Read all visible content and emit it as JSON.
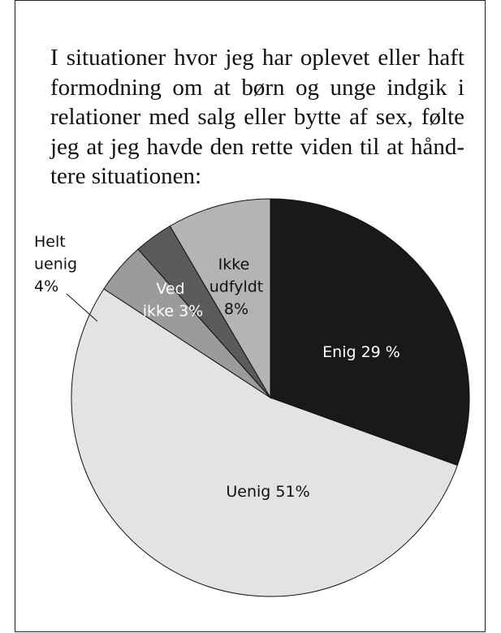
{
  "chart_data": {
    "type": "pie",
    "title": "I situationer hvor jeg har oplevet eller haft formodning om at børn og unge indgik i relationer med salg eller bytte af sex, følte jeg at jeg havde den rette viden til at hånd-tere situationen:",
    "categories": [
      "Enig",
      "Uenig",
      "Helt uenig",
      "Ved ikke",
      "Ikke udfyldt"
    ],
    "values": [
      29,
      51,
      4,
      3,
      8
    ],
    "value_labels": [
      "29 %",
      "51%",
      "4%",
      "3%",
      "8%"
    ],
    "colors": [
      "#1b1819",
      "#e3e3e3",
      "#9b9b9b",
      "#5b5b5b",
      "#b4b4b4"
    ]
  }
}
